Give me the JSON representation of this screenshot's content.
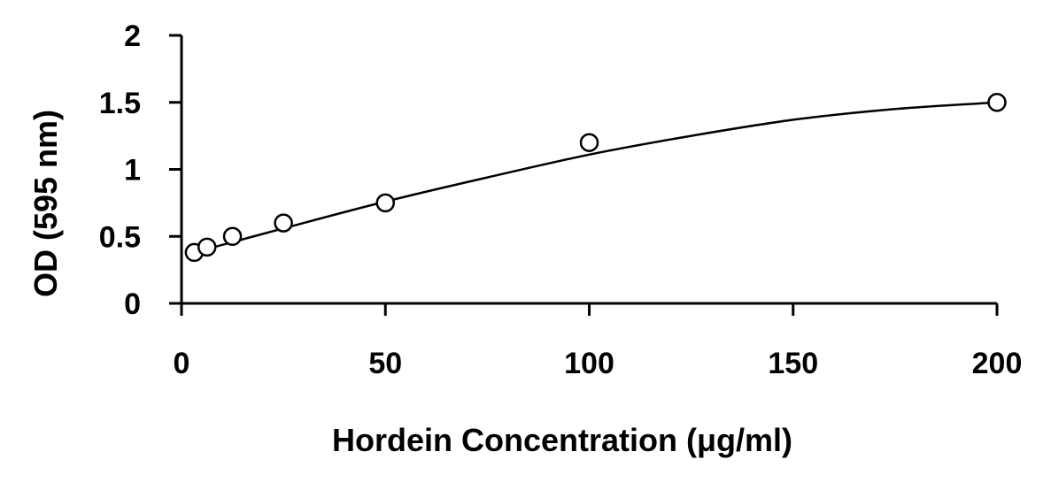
{
  "chart_data": {
    "type": "scatter",
    "title": "",
    "xlabel": "Hordein Concentration (μg/ml)",
    "ylabel": "OD (595 nm)",
    "xlim": [
      0,
      200
    ],
    "ylim": [
      0,
      2
    ],
    "x_ticks": [
      0,
      50,
      100,
      150,
      200
    ],
    "y_ticks": [
      0,
      0.5,
      1,
      1.5,
      2
    ],
    "x_tick_labels": [
      "0",
      "50",
      "100",
      "150",
      "200"
    ],
    "y_tick_labels": [
      "0",
      "0.5",
      "1",
      "1.5",
      "2"
    ],
    "grid": false,
    "legend": "none",
    "series": [
      {
        "x": [
          3.125,
          6.25,
          12.5,
          25,
          50,
          100,
          200
        ],
        "y": [
          0.38,
          0.42,
          0.5,
          0.6,
          0.75,
          1.2,
          1.5
        ],
        "marker": "open-circle",
        "color": "#000000"
      }
    ],
    "trendline": {
      "type": "polynomial-2",
      "x": [
        3.125,
        25,
        50,
        75,
        100,
        125,
        150,
        175,
        200
      ],
      "y": [
        0.38,
        0.56,
        0.76,
        0.94,
        1.11,
        1.25,
        1.37,
        1.45,
        1.5
      ],
      "color": "#000000"
    }
  }
}
